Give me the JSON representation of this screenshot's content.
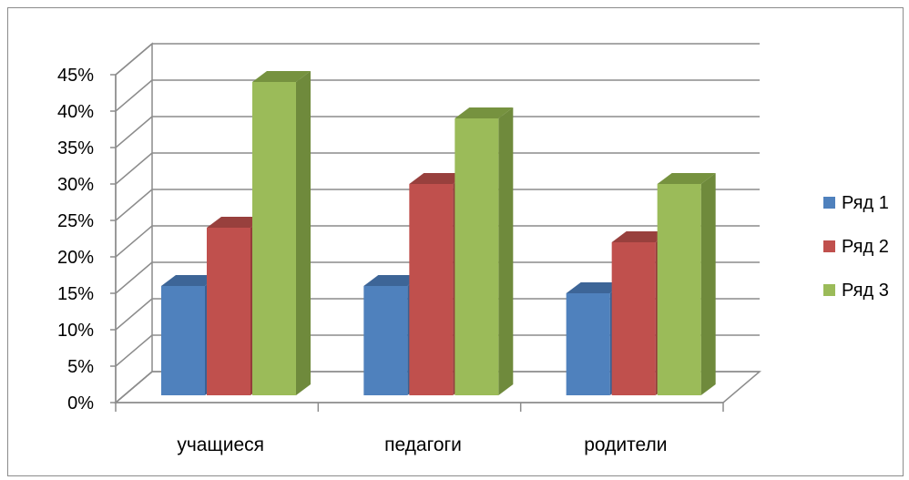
{
  "chart_data": {
    "type": "bar",
    "categories": [
      "учащиеся",
      "педагоги",
      "родители"
    ],
    "series": [
      {
        "name": "Ряд 1",
        "values": [
          15,
          15,
          14
        ],
        "color": "#4f81bd",
        "side": "#3a6194",
        "top": "#3d6597"
      },
      {
        "name": "Ряд 2",
        "values": [
          23,
          29,
          21
        ],
        "color": "#c0504d",
        "side": "#943c3a",
        "top": "#98403d"
      },
      {
        "name": "Ряд 3",
        "values": [
          43,
          38,
          29
        ],
        "color": "#9bbb59",
        "side": "#6f8a3c",
        "top": "#76923f"
      }
    ],
    "y_ticks": [
      "0%",
      "5%",
      "10%",
      "15%",
      "20%",
      "25%",
      "30%",
      "35%",
      "40%",
      "45%"
    ],
    "ylim": [
      0,
      45
    ],
    "y_unit": "%",
    "grid": true,
    "legend": "right",
    "title": "",
    "xlabel": "",
    "ylabel": ""
  }
}
